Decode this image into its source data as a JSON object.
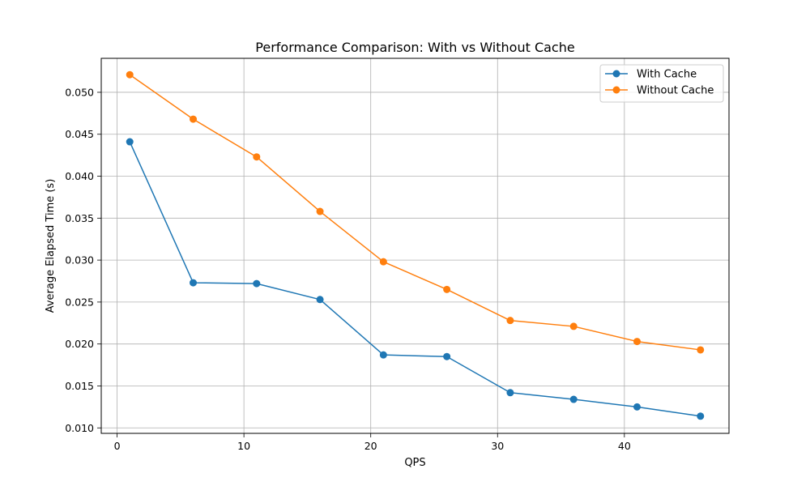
{
  "chart_data": {
    "type": "line",
    "title": "Performance Comparison: With vs Without Cache",
    "xlabel": "QPS",
    "ylabel": "Average Elapsed Time (s)",
    "xlim": [
      -1.25,
      48.25
    ],
    "ylim": [
      0.00935,
      0.05405
    ],
    "xticks": [
      0,
      10,
      20,
      30,
      40
    ],
    "yticks": [
      0.01,
      0.015,
      0.02,
      0.025,
      0.03,
      0.035,
      0.04,
      0.045,
      0.05
    ],
    "xtick_labels": [
      "0",
      "10",
      "20",
      "30",
      "40"
    ],
    "ytick_labels": [
      "0.010",
      "0.015",
      "0.020",
      "0.025",
      "0.030",
      "0.035",
      "0.040",
      "0.045",
      "0.050"
    ],
    "grid": true,
    "legend_position": "upper right",
    "x": [
      1,
      6,
      11,
      16,
      21,
      26,
      31,
      36,
      41,
      46
    ],
    "series": [
      {
        "name": "With Cache",
        "color": "#1f77b4",
        "marker": "circle",
        "values": [
          0.0441,
          0.0273,
          0.0272,
          0.0253,
          0.0187,
          0.0185,
          0.0142,
          0.0134,
          0.0125,
          0.0114
        ]
      },
      {
        "name": "Without Cache",
        "color": "#ff7f0e",
        "marker": "circle",
        "values": [
          0.0521,
          0.0468,
          0.0423,
          0.0358,
          0.0298,
          0.0265,
          0.0228,
          0.0221,
          0.0203,
          0.0193
        ]
      }
    ]
  }
}
